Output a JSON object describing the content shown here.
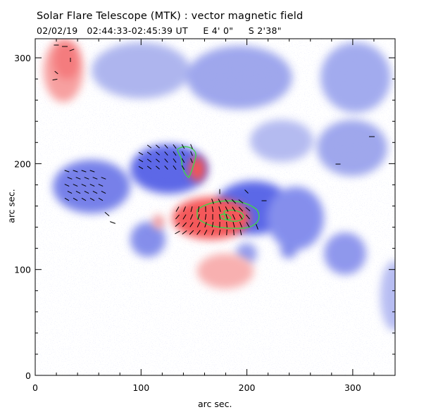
{
  "figure": {
    "title": "Solar Flare Telescope (MTK) : vector magnetic field",
    "date": "02/02/19",
    "time_range": "02:44:33-02:45:39 UT",
    "position_e": "E 4' 0\"",
    "position_s": "S 2'38\""
  },
  "axes": {
    "xlabel": "arc sec.",
    "ylabel": "arc sec.",
    "xlim": [
      0,
      340
    ],
    "ylim": [
      0,
      318
    ],
    "xticks": [
      "0",
      "100",
      "200",
      "300"
    ],
    "yticks": [
      "0",
      "100",
      "200",
      "300"
    ],
    "xtick_values": [
      0,
      100,
      200,
      300
    ],
    "ytick_values": [
      0,
      100,
      200,
      300
    ]
  },
  "colors": {
    "positive_polarity": "#f4585a",
    "negative_polarity": "#4b5ae8",
    "contour": "#3fd34a",
    "vectors": "#000000"
  }
}
